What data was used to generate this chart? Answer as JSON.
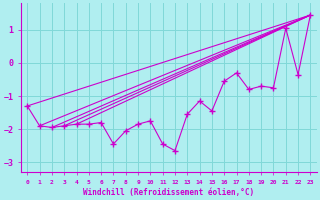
{
  "bg_color": "#b0eef0",
  "line_color": "#cc00cc",
  "grid_color": "#80d8d8",
  "xlabel": "Windchill (Refroidissement éolien,°C)",
  "xlim": [
    -0.5,
    23.5
  ],
  "ylim": [
    -3.3,
    1.8
  ],
  "yticks": [
    -3,
    -2,
    -1,
    0,
    1
  ],
  "xticks": [
    0,
    1,
    2,
    3,
    4,
    5,
    6,
    7,
    8,
    9,
    10,
    11,
    12,
    13,
    14,
    15,
    16,
    17,
    18,
    19,
    20,
    21,
    22,
    23
  ],
  "data_x": [
    0,
    1,
    2,
    3,
    4,
    5,
    6,
    7,
    8,
    9,
    10,
    11,
    12,
    13,
    14,
    15,
    16,
    17,
    18,
    19,
    20,
    21,
    22,
    23
  ],
  "data_y": [
    -1.3,
    -1.9,
    -1.95,
    -1.9,
    -1.85,
    -1.85,
    -1.8,
    -2.45,
    -2.05,
    -1.85,
    -1.75,
    -2.45,
    -2.65,
    -1.55,
    -1.15,
    -1.45,
    -0.55,
    -0.3,
    -0.8,
    -0.7,
    -0.75,
    1.05,
    -0.35,
    1.45
  ],
  "straight_lines": [
    {
      "x0": 0,
      "y0": -1.3,
      "x1": 23,
      "y1": 1.45
    },
    {
      "x0": 1,
      "y0": -1.9,
      "x1": 23,
      "y1": 1.45
    },
    {
      "x0": 2,
      "y0": -1.95,
      "x1": 23,
      "y1": 1.45
    },
    {
      "x0": 3,
      "y0": -1.9,
      "x1": 23,
      "y1": 1.45
    },
    {
      "x0": 4,
      "y0": -1.85,
      "x1": 23,
      "y1": 1.45
    }
  ]
}
